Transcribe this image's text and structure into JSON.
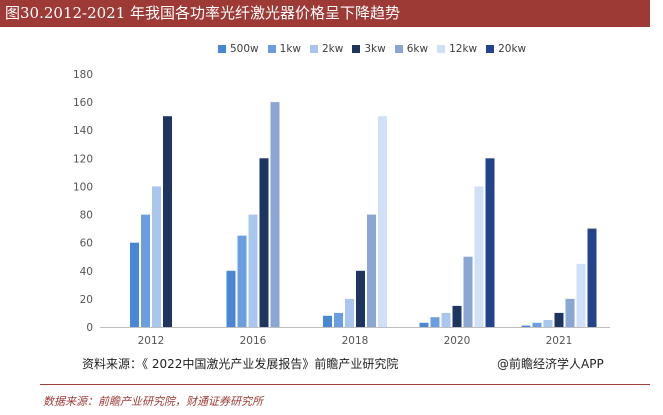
{
  "header": {
    "title": "图30.2012-2021 年我国各功率光纤激光器价格呈下降趋势"
  },
  "chart_data": {
    "type": "bar",
    "categories": [
      "2012",
      "2016",
      "2018",
      "2020",
      "2021"
    ],
    "ylim": [
      0,
      180
    ],
    "yticks": [
      "0",
      "20",
      "40",
      "60",
      "80",
      "100",
      "120",
      "140",
      "160",
      "180"
    ],
    "grid": false,
    "legend_position": "top",
    "series": [
      {
        "name": "500w",
        "color": "#4a86d6",
        "values": [
          60,
          40,
          8,
          3,
          1
        ]
      },
      {
        "name": "1kw",
        "color": "#6a9ee0",
        "values": [
          80,
          65,
          10,
          7,
          3
        ]
      },
      {
        "name": "2kw",
        "color": "#a9c6ef",
        "values": [
          100,
          80,
          20,
          10,
          5
        ]
      },
      {
        "name": "3kw",
        "color": "#1e3560",
        "values": [
          150,
          120,
          40,
          15,
          10
        ]
      },
      {
        "name": "6kw",
        "color": "#8aa6d2",
        "values": [
          null,
          160,
          80,
          50,
          20
        ]
      },
      {
        "name": "12kw",
        "color": "#cfe0f7",
        "values": [
          null,
          null,
          150,
          100,
          45
        ]
      },
      {
        "name": "20kw",
        "color": "#23448c",
        "values": [
          null,
          null,
          null,
          120,
          70
        ]
      }
    ]
  },
  "source": {
    "inner": "资料来源：《 2022中国激光产业发展报告》前瞻产业研究院",
    "brand": "@前瞻经济学人APP"
  },
  "footer": {
    "text": "数据来源：前瞻产业研究院，财通证券研究所"
  }
}
